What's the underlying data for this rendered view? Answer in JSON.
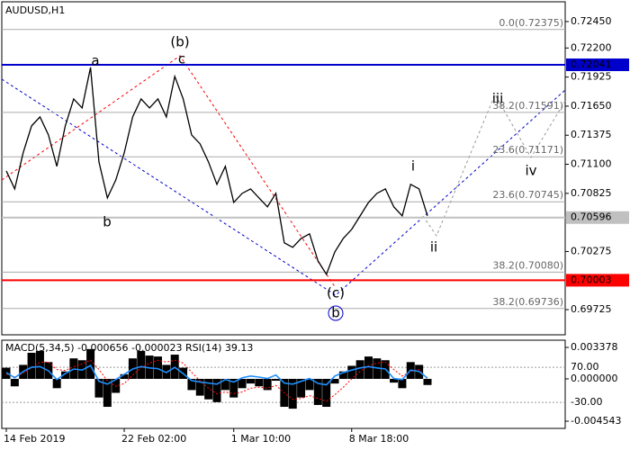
{
  "chart_data": [
    {
      "type": "line",
      "title": "AUDUSD,H1",
      "color": "#000000",
      "categories": [
        "14 Feb 2019",
        null,
        null,
        null,
        null,
        null,
        null,
        null,
        null,
        null,
        null,
        null,
        null,
        null,
        "22 Feb 02:00",
        null,
        null,
        null,
        null,
        null,
        null,
        null,
        null,
        null,
        null,
        null,
        null,
        "1 Mar 10:00",
        null,
        null,
        null,
        null,
        null,
        null,
        null,
        null,
        null,
        null,
        null,
        null,
        null,
        "8 Mar 18:00",
        null,
        null,
        null,
        null,
        null,
        null,
        null,
        null,
        null
      ],
      "values": [
        0.71037,
        0.70867,
        0.71208,
        0.71463,
        0.71548,
        0.71378,
        0.7108,
        0.71463,
        0.71718,
        0.71633,
        0.72016,
        0.71122,
        0.70782,
        0.70952,
        0.71208,
        0.71548,
        0.71718,
        0.71633,
        0.71718,
        0.71548,
        0.71931,
        0.71718,
        0.71378,
        0.71293,
        0.71122,
        0.7091,
        0.7108,
        0.70739,
        0.70825,
        0.70867,
        0.70782,
        0.70697,
        0.70825,
        0.70357,
        0.70314,
        0.70399,
        0.70442,
        0.70186,
        0.70059,
        0.70271,
        0.70399,
        0.70484,
        0.70612,
        0.70739,
        0.70825,
        0.70867,
        0.70697,
        0.70612,
        0.7091,
        0.70867,
        0.70612
      ],
      "ylim": [
        0.69487,
        0.72637
      ],
      "yticks": [
        {
          "value": 0.7245,
          "label": "0.72450"
        },
        {
          "value": 0.722,
          "label": "0.72200"
        },
        0.71925,
        {
          "value": 0.7165,
          "label": "0.71650"
        },
        0.71375,
        {
          "value": 0.711,
          "label": "0.71100"
        },
        0.70825,
        0.70275,
        0.69725
      ],
      "price_lines": [
        {
          "value": 0.72041,
          "color": "#0000cc"
        },
        {
          "value": 0.70596,
          "color": "#c0c0c0"
        },
        {
          "value": 0.70003,
          "color": "#ff0000"
        }
      ],
      "fib_levels": [
        {
          "label": "0.0(0.72375)",
          "value": 0.72375
        },
        {
          "label": "38.2(0.71591)",
          "value": 0.71591
        },
        {
          "label": "23.6(0.71171)",
          "value": 0.71171
        },
        {
          "label": "23.6(0.70745)",
          "value": 0.70745
        },
        {
          "label": "38.2(0.70080)",
          "value": 0.7008
        },
        {
          "label": "38.2(0.69736)",
          "value": 0.69736
        }
      ],
      "annotations": [
        {
          "text": "a",
          "color": "#808080"
        },
        {
          "text": "(b)",
          "color": "#ff0000"
        },
        {
          "text": "c",
          "color": "#808080"
        },
        {
          "text": "b",
          "color": "#808080"
        },
        {
          "text": "(c)",
          "color": "#ff0000"
        },
        {
          "text": "b",
          "color": "#0000cc"
        },
        {
          "text": "i",
          "color": "#808080"
        },
        {
          "text": "ii",
          "color": "#808080"
        },
        {
          "text": "iii",
          "color": "#808080"
        },
        {
          "text": "iv",
          "color": "#808080"
        }
      ]
    },
    {
      "type": "bar",
      "title": "MACD(5,34,5) -0.000656 -0.000023 RSI(14) 39.13",
      "ylim": [
        -0.005316,
        0.004151
      ],
      "yticks": [
        0.003378,
        {
          "value": 0,
          "label": "0.000000"
        },
        -0.004543
      ],
      "y2lim": [
        -104,
        147
      ],
      "y2ticks": [
        {
          "value": 70,
          "label": "70.00"
        },
        {
          "value": -30,
          "label": "-30.00"
        }
      ],
      "series": [
        {
          "color": "#000000",
          "values": [
            0.0012,
            -0.0008,
            0.0015,
            0.0028,
            0.003,
            0.0018,
            -0.001,
            0.0008,
            0.0022,
            0.002,
            0.0032,
            -0.002,
            -0.003,
            -0.0015,
            0.0005,
            0.0022,
            0.003,
            0.0025,
            0.0024,
            0.0015,
            0.0026,
            0.0012,
            -0.0012,
            -0.0018,
            -0.0022,
            -0.0025,
            -0.0012,
            -0.002,
            -0.001,
            -0.0005,
            -0.0008,
            -0.0012,
            -0.0002,
            -0.003,
            -0.0032,
            -0.002,
            -0.0012,
            -0.0028,
            -0.003,
            -0.0005,
            0.0008,
            0.0014,
            0.002,
            0.0024,
            0.0022,
            0.002,
            -0.0004,
            -0.001,
            0.0018,
            0.0015,
            -0.000656
          ]
        },
        {
          "color": "#ff0000",
          "values": [
            0.0005,
            0.0002,
            0.0006,
            0.0012,
            0.0018,
            0.0018,
            0.001,
            0.0009,
            0.0013,
            0.0016,
            0.002,
            0.001,
            -0.0002,
            -0.0008,
            -0.0005,
            0.0004,
            0.0012,
            0.0017,
            0.002,
            0.0018,
            0.002,
            0.0017,
            0.0007,
            -0.0002,
            -0.001,
            -0.0016,
            -0.0014,
            -0.0016,
            -0.0014,
            -0.001,
            -0.0009,
            -0.001,
            -0.0007,
            -0.0015,
            -0.0022,
            -0.0021,
            -0.0018,
            -0.0021,
            -0.0024,
            -0.0017,
            -0.0009,
            0,
            0.0008,
            0.0014,
            0.0017,
            0.0018,
            0.001,
            0.0003,
            0.0008,
            0.001,
            -2.3e-05
          ]
        },
        {
          "color": "#1e90ff",
          "axis": "y2",
          "values": [
            55,
            40,
            58,
            70,
            72,
            60,
            35,
            52,
            65,
            62,
            75,
            30,
            22,
            35,
            50,
            65,
            72,
            68,
            66,
            55,
            70,
            52,
            32,
            28,
            25,
            22,
            35,
            28,
            40,
            45,
            42,
            38,
            48,
            25,
            22,
            30,
            38,
            24,
            20,
            45,
            55,
            62,
            68,
            72,
            68,
            65,
            38,
            35,
            62,
            58,
            39.13
          ]
        }
      ]
    }
  ]
}
